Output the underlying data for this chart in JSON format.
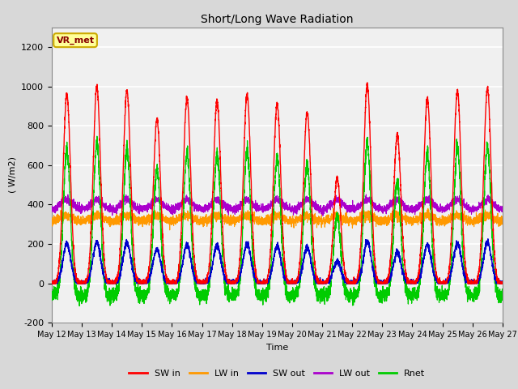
{
  "title": "Short/Long Wave Radiation",
  "xlabel": "Time",
  "ylabel": "( W/m2)",
  "ylim": [
    -200,
    1300
  ],
  "yticks": [
    -200,
    0,
    200,
    400,
    600,
    800,
    1000,
    1200
  ],
  "num_days": 15,
  "points_per_day": 288,
  "label_text": "VR_met",
  "colors": {
    "SW_in": "#ff0000",
    "LW_in": "#ff9900",
    "SW_out": "#0000cc",
    "LW_out": "#aa00cc",
    "Rnet": "#00cc00"
  },
  "legend_labels": [
    "SW in",
    "LW in",
    "SW out",
    "LW out",
    "Rnet"
  ],
  "background_color": "#d8d8d8",
  "axes_bg": "#f0f0f0",
  "grid_color": "#cccccc",
  "annotation_box_color": "#ffff99",
  "annotation_box_edge": "#ccaa00"
}
